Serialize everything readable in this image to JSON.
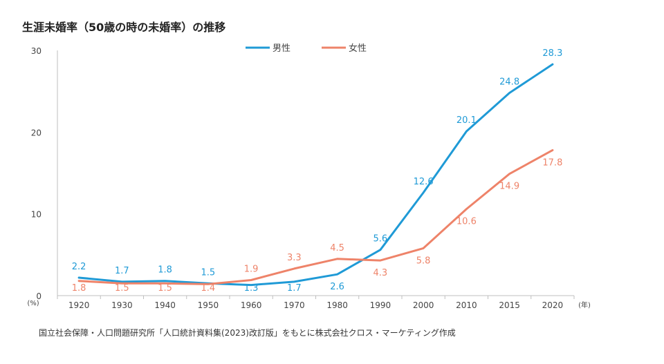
{
  "title": "生涯未婚率（50歳の時の未婚率）の推移",
  "source": "国立社会保障・人口問題研究所「人口統計資料集(2023)改訂版」をもとに株式会社クロス・マーケティング作成",
  "chart_data": {
    "type": "line",
    "categories": [
      "1920",
      "1930",
      "1940",
      "1950",
      "1960",
      "1970",
      "1980",
      "1990",
      "2000",
      "2010",
      "2015",
      "2020"
    ],
    "series": [
      {
        "name": "男性",
        "color": "#1f9ad6",
        "values": [
          2.2,
          1.7,
          1.8,
          1.5,
          1.3,
          1.7,
          2.6,
          5.6,
          12.6,
          20.1,
          24.8,
          28.3
        ],
        "labels": [
          "2.2",
          "1.7",
          "1.8",
          "1.5",
          "1.3",
          "1.7",
          "2.6",
          "5.6",
          "12.6",
          "20.1",
          "24.8",
          "28.3"
        ]
      },
      {
        "name": "女性",
        "color": "#ee8369",
        "values": [
          1.8,
          1.5,
          1.5,
          1.4,
          1.9,
          3.3,
          4.5,
          4.3,
          5.8,
          10.6,
          14.9,
          17.8
        ],
        "labels": [
          "1.8",
          "1.5",
          "1.5",
          "1.4",
          "1.9",
          "3.3",
          "4.5",
          "4.3",
          "5.8",
          "10.6",
          "14.9",
          "17.8"
        ]
      }
    ],
    "ylim": [
      0,
      30
    ],
    "yticks": [
      0,
      10,
      20,
      30
    ],
    "y_unit": "(%)",
    "x_unit": "(年)",
    "legend": "top-center",
    "grid": false
  }
}
